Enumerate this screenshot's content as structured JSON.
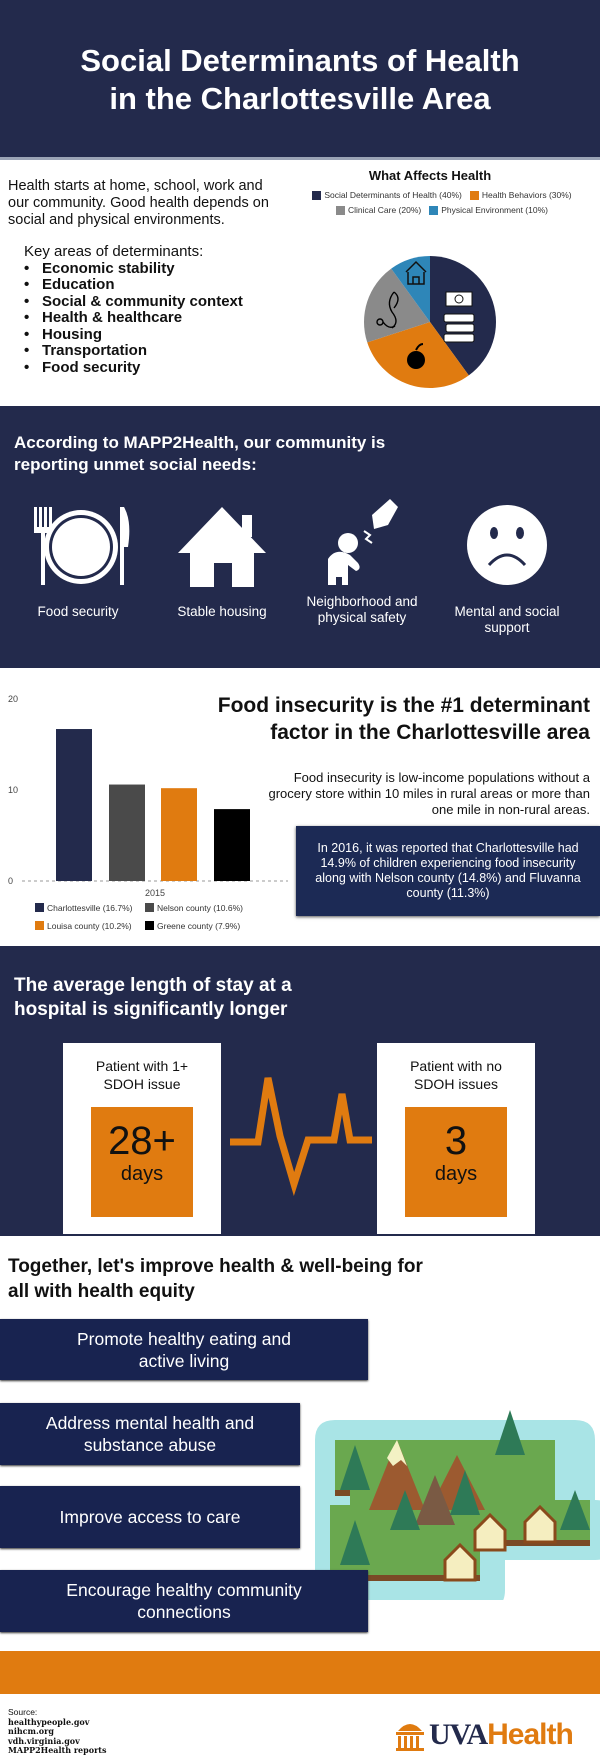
{
  "header": {
    "title_line1": "Social Determinants of Health",
    "title_line2": "in the Charlottesville Area"
  },
  "intro": {
    "text": "Health starts at home, school, work and our community. Good health depends on social and physical environments.",
    "key_title": "Key areas of determinants:",
    "key_areas": [
      "Economic stability",
      "Education",
      "Social & community context",
      "Health & healthcare",
      "Housing",
      "Transportation",
      "Food security"
    ]
  },
  "chart_data": [
    {
      "type": "pie",
      "title": "What Affects Health",
      "categories": [
        "Social Determinants of Health (40%)",
        "Health Behaviors (30%)",
        "Clinical Care (20%)",
        "Physical Environment (10%)"
      ],
      "values": [
        40,
        30,
        20,
        10
      ],
      "colors": [
        "#232a4c",
        "#e07b10",
        "#8a8a8a",
        "#2e86b8"
      ],
      "slice_icons": [
        "money-books-icon",
        "apple-icon",
        "stethoscope-icon",
        "house-icon"
      ],
      "legend": "top"
    },
    {
      "type": "bar",
      "categories": [
        "2015"
      ],
      "series": [
        {
          "name": "Charlottesville (16.7%)",
          "values": [
            16.7
          ],
          "color": "#232a4c"
        },
        {
          "name": "Nelson county (10.6%)",
          "values": [
            10.6
          ],
          "color": "#4a4a4a"
        },
        {
          "name": "Louisa county (10.2%)",
          "values": [
            10.2
          ],
          "color": "#e07b10"
        },
        {
          "name": "Greene county (7.9%)",
          "values": [
            7.9
          ],
          "color": "#000000"
        }
      ],
      "yticks": [
        "0",
        "10",
        "20"
      ],
      "ylim": [
        0,
        20
      ],
      "xlabel": "2015",
      "legend": "bottom",
      "grid": false
    }
  ],
  "mapp": {
    "title": "According to MAPP2Health, our community is reporting unmet social needs:",
    "needs": [
      {
        "label": "Food security",
        "icon": "plate-fork-knife-icon"
      },
      {
        "label": "Stable housing",
        "icon": "house-icon"
      },
      {
        "label": "Neighborhood and physical safety",
        "icon": "violence-icon"
      },
      {
        "label": "Mental and social support",
        "icon": "sad-face-icon"
      }
    ]
  },
  "food": {
    "title": "Food insecurity is the #1 determinant factor in the Charlottesville area",
    "desc": "Food insecurity is low-income populations without a grocery store within 10 miles in rural areas or more than one mile in non-rural areas.",
    "box": "In 2016, it was reported that Charlottesville had 14.9% of children experiencing food insecurity along with Nelson county (14.8%) and Fluvanna county (11.3%)"
  },
  "hospital": {
    "title": "The average length of stay at a hospital is significantly longer",
    "cards": [
      {
        "label": "Patient with 1+ SDOH issue",
        "value": "28+",
        "unit": "days"
      },
      {
        "label": "Patient with no SDOH issues",
        "value": "3",
        "unit": "days"
      }
    ]
  },
  "together": {
    "title": "Together, let's improve health & well-being for all with health equity",
    "actions": [
      "Promote healthy eating and active living",
      "Address mental health and substance abuse",
      "Improve access to care",
      "Encourage healthy community connections"
    ]
  },
  "footer": {
    "source_label": "Source:",
    "sources": [
      "healthypeople.gov",
      "nihcm.org",
      "vdh.virginia.gov",
      "MAPP2Health reports"
    ],
    "logo_uva": "UVA",
    "logo_health": "Health"
  },
  "colors": {
    "navy": "#232a4c",
    "orange": "#e07b10"
  }
}
